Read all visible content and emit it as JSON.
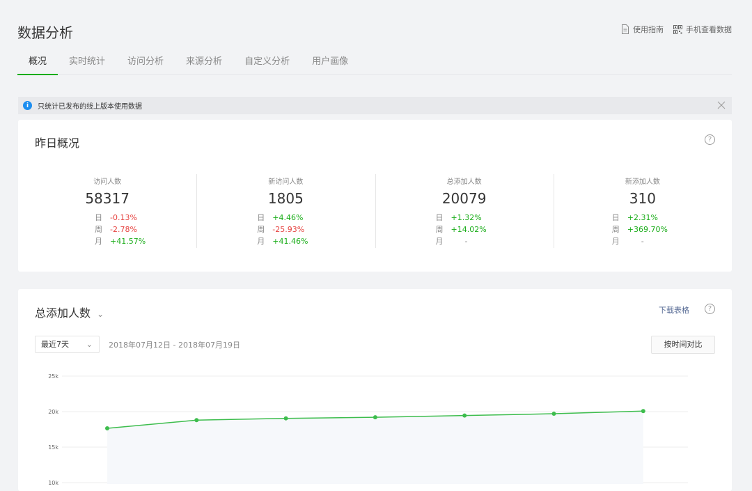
{
  "header": {
    "title": "数据分析",
    "links": [
      {
        "label": "使用指南",
        "icon": "document-icon"
      },
      {
        "label": "手机查看数据",
        "icon": "qrcode-icon"
      }
    ]
  },
  "tabs": [
    {
      "label": "概况",
      "active": true
    },
    {
      "label": "实时统计"
    },
    {
      "label": "访问分析"
    },
    {
      "label": "来源分析"
    },
    {
      "label": "自定义分析"
    },
    {
      "label": "用户画像"
    }
  ],
  "notice": {
    "icon_text": "i",
    "text": "只统计已发布的线上版本使用数据"
  },
  "overview": {
    "title": "昨日概况",
    "help": "?",
    "stats": [
      {
        "label": "访问人数",
        "value": "58317",
        "rows": [
          {
            "k": "日",
            "v": "-0.13%",
            "t": "neg"
          },
          {
            "k": "周",
            "v": "-2.78%",
            "t": "neg"
          },
          {
            "k": "月",
            "v": "+41.57%",
            "t": "pos"
          }
        ]
      },
      {
        "label": "新访问人数",
        "value": "1805",
        "rows": [
          {
            "k": "日",
            "v": "+4.46%",
            "t": "pos"
          },
          {
            "k": "周",
            "v": "-25.93%",
            "t": "neg"
          },
          {
            "k": "月",
            "v": "+41.46%",
            "t": "pos"
          }
        ]
      },
      {
        "label": "总添加人数",
        "value": "20079",
        "rows": [
          {
            "k": "日",
            "v": "+1.32%",
            "t": "pos"
          },
          {
            "k": "周",
            "v": "+14.02%",
            "t": "pos"
          },
          {
            "k": "月",
            "v": "-",
            "t": "dash"
          }
        ]
      },
      {
        "label": "新添加人数",
        "value": "310",
        "rows": [
          {
            "k": "日",
            "v": "+2.31%",
            "t": "pos"
          },
          {
            "k": "周",
            "v": "+369.70%",
            "t": "pos"
          },
          {
            "k": "月",
            "v": "-",
            "t": "dash"
          }
        ]
      }
    ]
  },
  "trend": {
    "title": "总添加人数",
    "title_caret": "⌄",
    "download": "下载表格",
    "help": "?",
    "range_select": "最近7天",
    "range_caret": "⌄",
    "date_range": "2018年07月12日 - 2018年07月19日",
    "compare_button": "按时间对比"
  },
  "colors": {
    "line": "#3dbd4d",
    "positive": "#1aad19",
    "negative": "#e64340",
    "link": "#576b95"
  },
  "chart_data": {
    "type": "line",
    "y_ticks": [
      "25k",
      "20k",
      "15k",
      "10k"
    ],
    "ylim": [
      10000,
      25000
    ],
    "series": [
      {
        "values": [
          17650,
          18800,
          19050,
          19200,
          19450,
          19700,
          20079
        ]
      }
    ]
  }
}
